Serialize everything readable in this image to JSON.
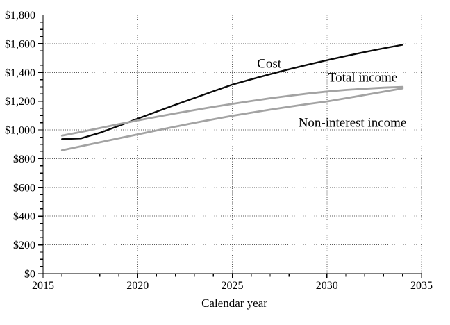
{
  "chart_data": {
    "type": "line",
    "title": "",
    "xlabel": "Calendar year",
    "ylabel": "",
    "xlim": [
      2015,
      2035
    ],
    "ylim": [
      0,
      1800
    ],
    "grid": "dotted",
    "grid_color": "#5a5a5a",
    "axis_color": "#000000",
    "x": [
      2016,
      2017,
      2018,
      2019,
      2020,
      2021,
      2022,
      2023,
      2024,
      2025,
      2026,
      2027,
      2028,
      2029,
      2030,
      2031,
      2032,
      2033,
      2034
    ],
    "series": [
      {
        "name": "Cost",
        "color": "#0a0a0a",
        "width": 2.4,
        "values": [
          936,
          941,
          980,
          1028,
          1078,
          1127,
          1175,
          1222,
          1269,
          1315,
          1352,
          1388,
          1422,
          1454,
          1485,
          1514,
          1542,
          1568,
          1592
        ]
      },
      {
        "name": "Total income",
        "color": "#a3a3a3",
        "width": 2.8,
        "values": [
          960,
          986,
          1013,
          1040,
          1066,
          1091,
          1115,
          1138,
          1160,
          1181,
          1201,
          1220,
          1237,
          1253,
          1267,
          1278,
          1287,
          1294,
          1299
        ]
      },
      {
        "name": "Non-interest income",
        "color": "#a3a3a3",
        "width": 2.8,
        "values": [
          858,
          886,
          914,
          942,
          969,
          996,
          1023,
          1049,
          1074,
          1098,
          1120,
          1141,
          1161,
          1180,
          1198,
          1220,
          1243,
          1266,
          1289
        ]
      }
    ],
    "y_ticks": {
      "values": [
        0,
        200,
        400,
        600,
        800,
        1000,
        1200,
        1400,
        1600,
        1800
      ],
      "labels": [
        "$0",
        "$200",
        "$400",
        "$600",
        "$800",
        "$1,000",
        "$1,200",
        "$1,400",
        "$1,600",
        "$1,800"
      ],
      "minor_step": 50
    },
    "x_ticks": {
      "values": [
        2015,
        2020,
        2025,
        2030,
        2035
      ],
      "labels": [
        "2015",
        "2020",
        "2025",
        "2030",
        "2035"
      ],
      "minor_step": 1
    },
    "annotations": [
      {
        "text": "Cost",
        "x": 2026.95,
        "y": 1464
      },
      {
        "text": "Total income",
        "x": 2031.9,
        "y": 1368
      },
      {
        "text": "Non-interest income",
        "x": 2031.35,
        "y": 1053
      }
    ],
    "legend_position": "inline-labels"
  }
}
